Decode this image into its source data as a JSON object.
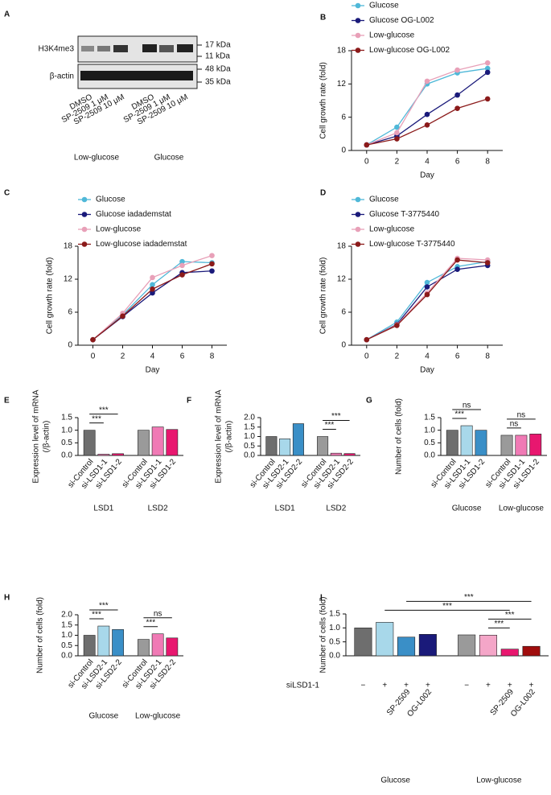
{
  "chart_data": [
    {
      "panel": "A",
      "type": "blot",
      "rows": [
        {
          "label": "H3K4me3",
          "markers": [
            "17 kDa",
            "11 kDa"
          ]
        },
        {
          "label": "β-actin",
          "markers": [
            "48 kDa",
            "35 kDa"
          ]
        }
      ],
      "lanes": [
        "DMSO",
        "SP-2509 1 μM",
        "SP-2509 10 μM",
        "DMSO",
        "SP-2509 1 μM",
        "SP-2509 10 μM"
      ],
      "groups": [
        "Low-glucose",
        "Glucose"
      ]
    },
    {
      "panel": "B",
      "type": "line",
      "x": [
        0,
        2,
        4,
        6,
        8
      ],
      "xlim": [
        -1,
        9
      ],
      "xticks": [
        0,
        2,
        4,
        6,
        8
      ],
      "ylim": [
        0,
        18
      ],
      "yticks": [
        0,
        6,
        12,
        18
      ],
      "xlabel": "Day",
      "ylabel": "Cell growth rate (fold)",
      "series": [
        {
          "name": "Glucose",
          "color": "#4fb8d8",
          "values": [
            1,
            4.2,
            12,
            14,
            14.8
          ]
        },
        {
          "name": "Glucose OG-L002",
          "color": "#1a1a7a",
          "values": [
            1,
            2.6,
            6.5,
            10,
            14.1
          ]
        },
        {
          "name": "Low-glucose",
          "color": "#e8a0b8",
          "values": [
            1,
            3.2,
            12.5,
            14.5,
            15.8
          ]
        },
        {
          "name": "Low-glucose OG-L002",
          "color": "#8b1a1a",
          "values": [
            1,
            2.1,
            4.6,
            7.6,
            9.3
          ]
        }
      ]
    },
    {
      "panel": "C",
      "type": "line",
      "x": [
        0,
        2,
        4,
        6,
        8
      ],
      "xlim": [
        -1,
        9
      ],
      "xticks": [
        0,
        2,
        4,
        6,
        8
      ],
      "ylim": [
        0,
        18
      ],
      "yticks": [
        0,
        6,
        12,
        18
      ],
      "xlabel": "Day",
      "ylabel": "Cell growth rate (fold)",
      "series": [
        {
          "name": "Glucose",
          "color": "#4fb8d8",
          "values": [
            1,
            5.5,
            11,
            15.2,
            15
          ]
        },
        {
          "name": "Glucose iadademstat",
          "color": "#1a1a7a",
          "values": [
            1,
            5.2,
            9.5,
            13.2,
            13.5
          ]
        },
        {
          "name": "Low-glucose",
          "color": "#e8a0b8",
          "values": [
            1,
            5.8,
            12.3,
            14.5,
            16.3
          ]
        },
        {
          "name": "Low-glucose iadademstat",
          "color": "#8b1a1a",
          "values": [
            1,
            5.3,
            10.2,
            12.8,
            14.8
          ]
        }
      ]
    },
    {
      "panel": "D",
      "type": "line",
      "x": [
        0,
        2,
        4,
        6,
        8
      ],
      "xlim": [
        -1,
        9
      ],
      "xticks": [
        0,
        2,
        4,
        6,
        8
      ],
      "ylim": [
        0,
        18
      ],
      "yticks": [
        0,
        6,
        12,
        18
      ],
      "xlabel": "Day",
      "ylabel": "Cell growth rate (fold)",
      "series": [
        {
          "name": "Glucose",
          "color": "#4fb8d8",
          "values": [
            1,
            4.2,
            11.4,
            14.3,
            15.2
          ]
        },
        {
          "name": "Glucose T-3775440",
          "color": "#1a1a7a",
          "values": [
            1,
            3.8,
            10.6,
            13.8,
            14.5
          ]
        },
        {
          "name": "Low-glucose",
          "color": "#e8a0b8",
          "values": [
            1,
            3.7,
            9.5,
            15.8,
            15.5
          ]
        },
        {
          "name": "Low-glucose T-3775440",
          "color": "#8b1a1a",
          "values": [
            1,
            3.6,
            9.2,
            15.5,
            15
          ]
        }
      ]
    },
    {
      "panel": "E",
      "type": "bar",
      "ylabel": [
        "Expression level of mRNA",
        "(/β-actin)"
      ],
      "ylim": [
        0,
        1.5
      ],
      "yticks": [
        {
          "value": 0,
          "label": "0.0"
        },
        0.5,
        {
          "value": 1,
          "label": "1.0"
        },
        1.5
      ],
      "groups": [
        "LSD1",
        "LSD2"
      ],
      "categories": [
        "si-Control",
        "si-LSD1-1",
        "si-LSD1-2",
        "si-Control",
        "si-LSD1-1",
        "si-LSD1-2"
      ],
      "values": [
        1.0,
        0.05,
        0.07,
        1.0,
        1.13,
        1.03
      ],
      "colors": [
        "#6e6e6e",
        "#f07ab5",
        "#e8176f",
        "#9a9a9a",
        "#f07ab5",
        "#e8176f"
      ],
      "brackets": [
        {
          "label": "***",
          "bars": [
            0,
            1
          ]
        },
        {
          "label": "***",
          "bars": [
            0,
            2
          ]
        }
      ]
    },
    {
      "panel": "F",
      "type": "bar",
      "ylabel": [
        "Expression level of mRNA",
        "(/β-actin)"
      ],
      "ylim": [
        0,
        2
      ],
      "yticks": [
        {
          "value": 0,
          "label": "0.0"
        },
        0.5,
        {
          "value": 1,
          "label": "1.0"
        },
        1.5,
        {
          "value": 2,
          "label": "2.0"
        }
      ],
      "groups": [
        "LSD1",
        "LSD2"
      ],
      "categories": [
        "si-Control",
        "si-LSD2-1",
        "si-LSD2-2",
        "si-Control",
        "si-LSD2-1",
        "si-LSD2-2"
      ],
      "values": [
        1.0,
        0.88,
        1.68,
        1.0,
        0.12,
        0.1
      ],
      "colors": [
        "#6e6e6e",
        "#a8d8ea",
        "#3a8fc7",
        "#9a9a9a",
        "#f07ab5",
        "#e8176f"
      ],
      "brackets": [
        {
          "label": "***",
          "bars": [
            3,
            4
          ]
        },
        {
          "label": "***",
          "bars": [
            3,
            5
          ]
        }
      ]
    },
    {
      "panel": "G",
      "type": "bar",
      "ylabel": "Number of cells (fold)",
      "ylim": [
        0,
        1.5
      ],
      "yticks": [
        {
          "value": 0,
          "label": "0.0"
        },
        0.5,
        {
          "value": 1,
          "label": "1.0"
        },
        1.5
      ],
      "groups": [
        "Glucose",
        "Low-glucose"
      ],
      "categories": [
        "si-Control",
        "si-LSD1-1",
        "si-LSD1-2",
        "si-Control",
        "si-LSD1-1",
        "si-LSD1-2"
      ],
      "values": [
        1.0,
        1.18,
        1.0,
        0.8,
        0.8,
        0.85
      ],
      "colors": [
        "#6e6e6e",
        "#a8d8ea",
        "#3a8fc7",
        "#9a9a9a",
        "#f07ab5",
        "#e8176f"
      ],
      "brackets": [
        {
          "label": "***",
          "bars": [
            0,
            1
          ]
        },
        {
          "label": "ns",
          "bars": [
            0,
            2
          ]
        },
        {
          "label": "ns",
          "bars": [
            3,
            4
          ]
        },
        {
          "label": "ns",
          "bars": [
            3,
            5
          ]
        }
      ]
    },
    {
      "panel": "H",
      "type": "bar",
      "ylabel": "Number of cells (fold)",
      "ylim": [
        0,
        2
      ],
      "yticks": [
        {
          "value": 0,
          "label": "0.0"
        },
        0.5,
        {
          "value": 1,
          "label": "1.0"
        },
        1.5,
        {
          "value": 2,
          "label": "2.0"
        }
      ],
      "groups": [
        "Glucose",
        "Low-glucose"
      ],
      "categories": [
        "si-Control",
        "si-LSD2-1",
        "si-LSD2-2",
        "si-Control",
        "si-LSD2-1",
        "si-LSD2-2"
      ],
      "values": [
        1.0,
        1.45,
        1.28,
        0.8,
        1.07,
        0.87
      ],
      "colors": [
        "#6e6e6e",
        "#a8d8ea",
        "#3a8fc7",
        "#9a9a9a",
        "#f07ab5",
        "#e8176f"
      ],
      "brackets": [
        {
          "label": "***",
          "bars": [
            0,
            1
          ]
        },
        {
          "label": "***",
          "bars": [
            0,
            2
          ]
        },
        {
          "label": "***",
          "bars": [
            3,
            4
          ]
        },
        {
          "label": "ns",
          "bars": [
            3,
            5
          ]
        }
      ]
    },
    {
      "panel": "I",
      "type": "bar",
      "ylabel": "Number of cells (fold)",
      "ylim": [
        0,
        1.5
      ],
      "yticks": [
        {
          "value": 0,
          "label": "0.0"
        },
        0.5,
        {
          "value": 1,
          "label": "1.0"
        },
        1.5
      ],
      "groups": [
        "Glucose",
        "Low-glucose"
      ],
      "categories": [
        null,
        null,
        "SP-2509",
        "OG-L002",
        null,
        null,
        "SP-2509",
        "OG-L002"
      ],
      "values": [
        1.0,
        1.2,
        0.67,
        0.77,
        0.75,
        0.74,
        0.24,
        0.34
      ],
      "row": {
        "label": "siLSD1-1",
        "marks": [
          "−",
          "+",
          "+",
          "+",
          "−",
          "+",
          "+",
          "+"
        ]
      },
      "colors": [
        "#6e6e6e",
        "#a8d8ea",
        "#3a8fc7",
        "#1a1a7a",
        "#9a9a9a",
        "#f4a6c8",
        "#e8176f",
        "#a00d0d"
      ],
      "brackets": [
        {
          "label": "***",
          "bars": [
            5,
            6
          ]
        },
        {
          "label": "***",
          "bars": [
            5,
            7
          ]
        },
        {
          "label": "***",
          "bars": [
            1,
            6
          ]
        },
        {
          "label": "***",
          "bars": [
            2,
            7
          ]
        }
      ]
    }
  ]
}
